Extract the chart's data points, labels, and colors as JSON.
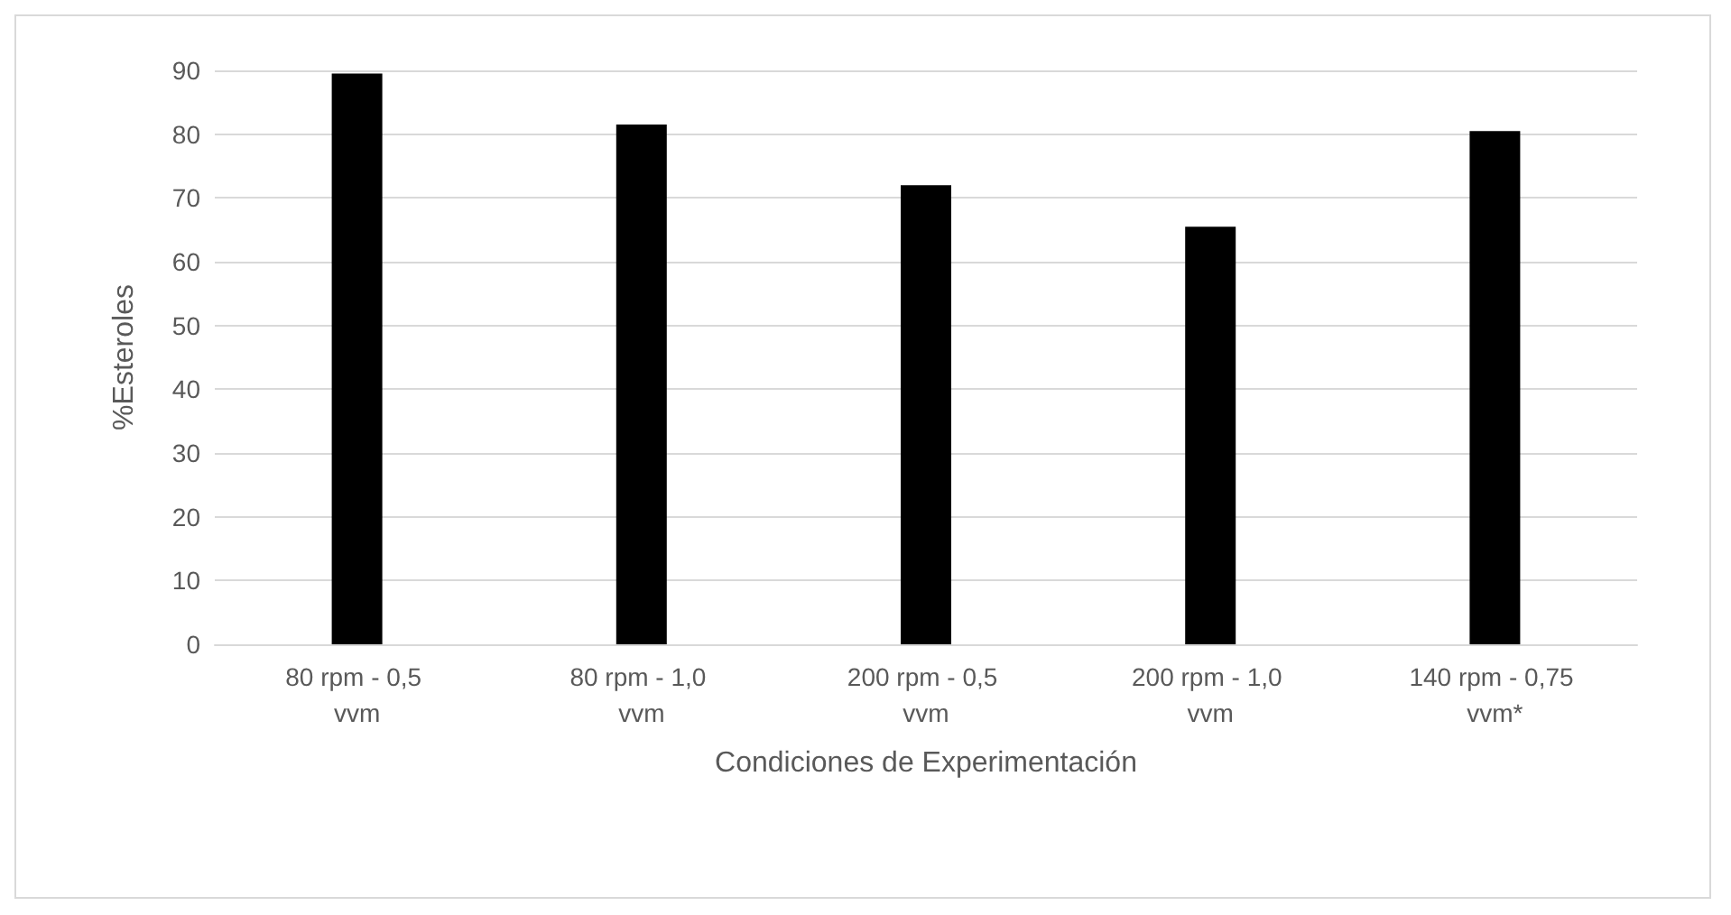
{
  "chart_data": {
    "type": "bar",
    "xlabel": "Condiciones de Experimentación",
    "ylabel": "%Esteroles",
    "categories": [
      "80 rpm - 0,5 vvm",
      "80 rpm - 1,0 vvm",
      "200 rpm - 0,5 vvm",
      "200 rpm - 1,0 vvm",
      "140 rpm - 0,75 vvm*"
    ],
    "values": [
      89.5,
      81.5,
      72,
      65.5,
      80.5
    ],
    "color": "#000000",
    "ylim": [
      0,
      90
    ],
    "yticks": [
      0,
      10,
      20,
      30,
      40,
      50,
      60,
      70,
      80,
      90
    ],
    "grid": "y"
  }
}
